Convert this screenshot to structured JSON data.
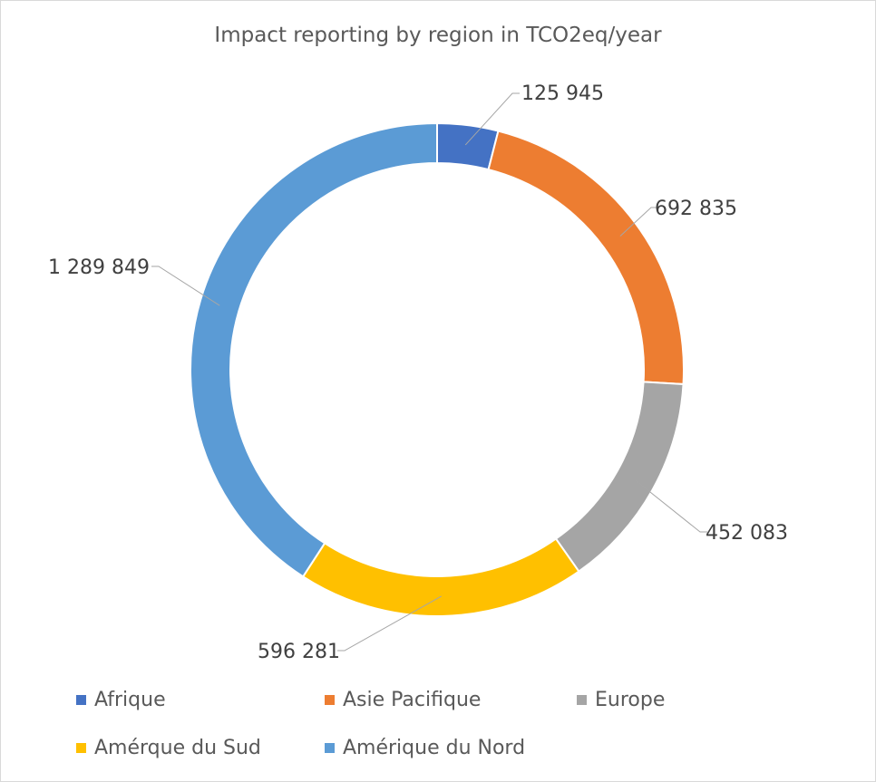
{
  "chart_data": {
    "type": "pie",
    "subtype": "donut",
    "title": "Impact reporting by region in TCO2eq/year",
    "categories": [
      "Afrique",
      "Asie Pacifique",
      "Europe",
      "Amérque du Sud",
      "Amérique du Nord"
    ],
    "values": [
      125945,
      692835,
      452083,
      596281,
      1289849
    ],
    "data_labels": [
      "125 945",
      "692 835",
      "452 083",
      "596 281",
      "1 289 849"
    ],
    "colors": [
      "#4472C4",
      "#ED7D31",
      "#A5A5A5",
      "#FFC000",
      "#5B9BD5"
    ],
    "start_angle": "top",
    "direction": "clockwise",
    "legend_position": "bottom"
  }
}
